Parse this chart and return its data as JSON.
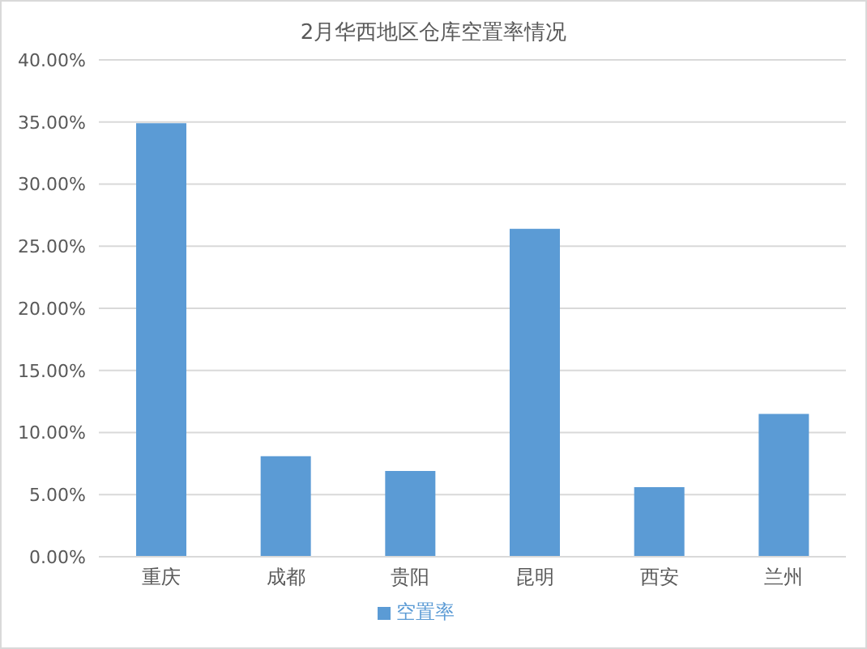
{
  "chart_data": {
    "type": "bar",
    "title": "2月华西地区仓库空置率情况",
    "categories": [
      "重庆",
      "成都",
      "贵阳",
      "昆明",
      "西安",
      "兰州"
    ],
    "series": [
      {
        "name": "空置率",
        "color": "#5b9bd5",
        "values": [
          34.9,
          8.1,
          6.9,
          26.4,
          5.6,
          11.5
        ]
      }
    ],
    "ylim": [
      0,
      40
    ],
    "yticks": [
      {
        "value": 0,
        "label": "0.00%"
      },
      {
        "value": 5,
        "label": "5.00%"
      },
      {
        "value": 10,
        "label": "10.00%"
      },
      {
        "value": 15,
        "label": "15.00%"
      },
      {
        "value": 20,
        "label": "20.00%"
      },
      {
        "value": 25,
        "label": "25.00%"
      },
      {
        "value": 30,
        "label": "30.00%"
      },
      {
        "value": 35,
        "label": "35.00%"
      },
      {
        "value": 40,
        "label": "40.00%"
      }
    ],
    "grid": "y",
    "legend": "bottom"
  }
}
